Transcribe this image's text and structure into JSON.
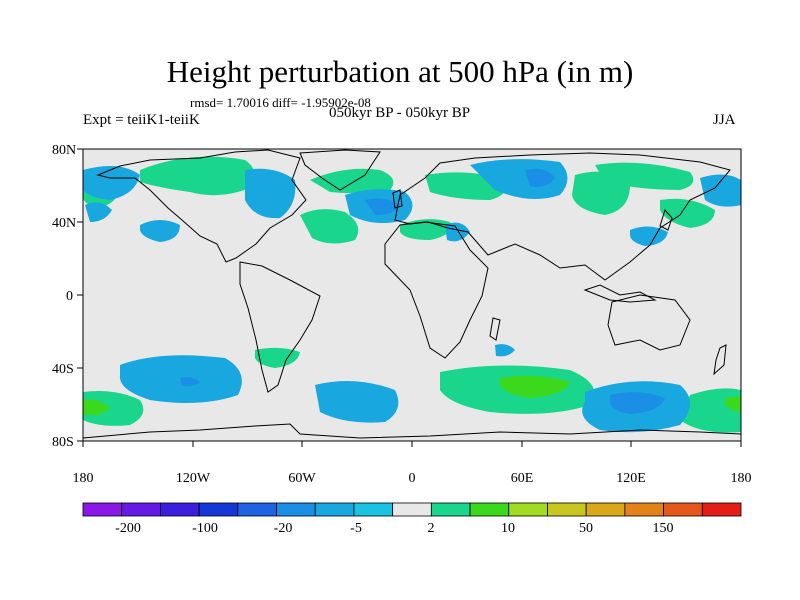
{
  "title": "Height perturbation at 500 hPa (in m)",
  "stats": "rmsd= 1.70016 diff= -1.95902e-08",
  "experiment": "Expt = teiiK1-teiiK",
  "period": "050kyr BP - 050kyr BP",
  "season": "JJA",
  "y_ticks": [
    "80N",
    "40N",
    "0",
    "40S",
    "80S"
  ],
  "x_ticks": [
    "180",
    "120W",
    "60W",
    "0",
    "60E",
    "120E",
    "180"
  ],
  "colorbar": {
    "colors": [
      "#8a17e8",
      "#6419e6",
      "#3b1fdf",
      "#1637d8",
      "#1f63e4",
      "#1b8ee5",
      "#19a7e0",
      "#1bc3e3",
      "#e8e8e8",
      "#1ad68c",
      "#3bd81c",
      "#a2dc22",
      "#c9c61f",
      "#d9a718",
      "#e4821a",
      "#e5571a",
      "#e41e17"
    ],
    "labels": [
      "-200",
      "-100",
      "-20",
      "-5",
      "2",
      "10",
      "50",
      "150"
    ]
  },
  "map": {
    "background": "#e8e8e8"
  }
}
